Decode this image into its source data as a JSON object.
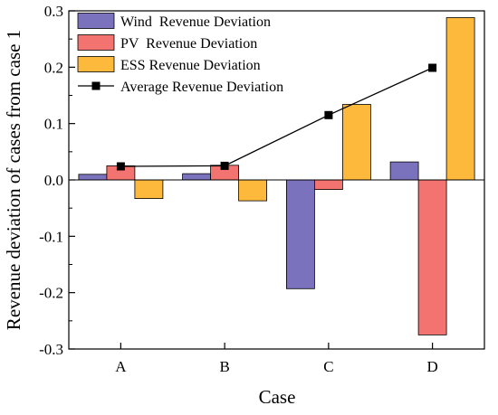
{
  "chart_data": {
    "type": "bar",
    "xlabel": "Case",
    "ylabel": "Revenue deviation of cases from case 1",
    "categories": [
      "A",
      "B",
      "C",
      "D"
    ],
    "ylim": [
      -0.3,
      0.3
    ],
    "yticks": [
      "-0.3",
      "-0.2",
      "-0.1",
      "0.0",
      "0.1",
      "0.2",
      "0.3"
    ],
    "grid": false,
    "legend_position": "top-left",
    "series": [
      {
        "name": "Wind  Revenue Deviation",
        "kind": "bar",
        "color": "#7b72bd",
        "values": [
          0.01,
          0.011,
          -0.193,
          0.032
        ]
      },
      {
        "name": "PV  Revenue Deviation",
        "kind": "bar",
        "color": "#f2736f",
        "values": [
          0.025,
          0.026,
          -0.017,
          -0.275
        ]
      },
      {
        "name": "ESS Revenue Deviation",
        "kind": "bar",
        "color": "#fcb93c",
        "values": [
          -0.033,
          -0.037,
          0.134,
          0.288
        ]
      },
      {
        "name": "Average Revenue Deviation",
        "kind": "line",
        "color": "#000000",
        "values": [
          0.024,
          0.025,
          0.115,
          0.199
        ]
      }
    ]
  }
}
